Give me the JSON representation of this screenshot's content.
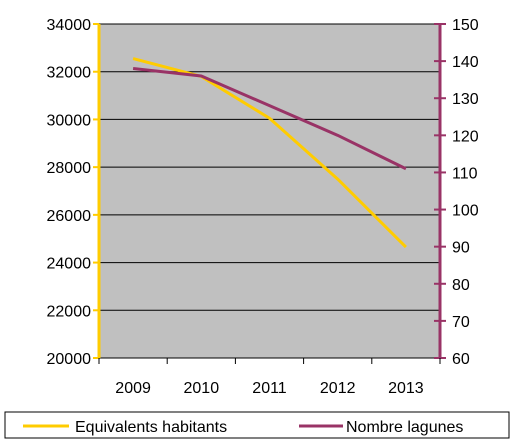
{
  "chart_data": {
    "type": "line",
    "title": "",
    "xlabel": "",
    "categories": [
      "2009",
      "2010",
      "2011",
      "2012",
      "2013"
    ],
    "y_left": {
      "min": 20000,
      "max": 34000,
      "step": 2000,
      "ticks": [
        "20000",
        "22000",
        "24000",
        "26000",
        "28000",
        "30000",
        "32000",
        "34000"
      ],
      "color": "#FFCC00"
    },
    "y_right": {
      "min": 60,
      "max": 150,
      "step": 10,
      "ticks": [
        "60",
        "70",
        "80",
        "90",
        "100",
        "110",
        "120",
        "130",
        "140",
        "150"
      ],
      "color": "#993366"
    },
    "grid": true,
    "legend_position": "bottom",
    "plot_background": "#C0C0C0",
    "series": [
      {
        "name": "Equivalents habitants",
        "axis": "left",
        "color": "#FFCC00",
        "values": [
          32550,
          31800,
          30050,
          27500,
          24650
        ]
      },
      {
        "name": "Nombre lagunes",
        "axis": "right",
        "color": "#993366",
        "values": [
          138,
          136,
          128,
          120,
          111
        ]
      }
    ]
  }
}
